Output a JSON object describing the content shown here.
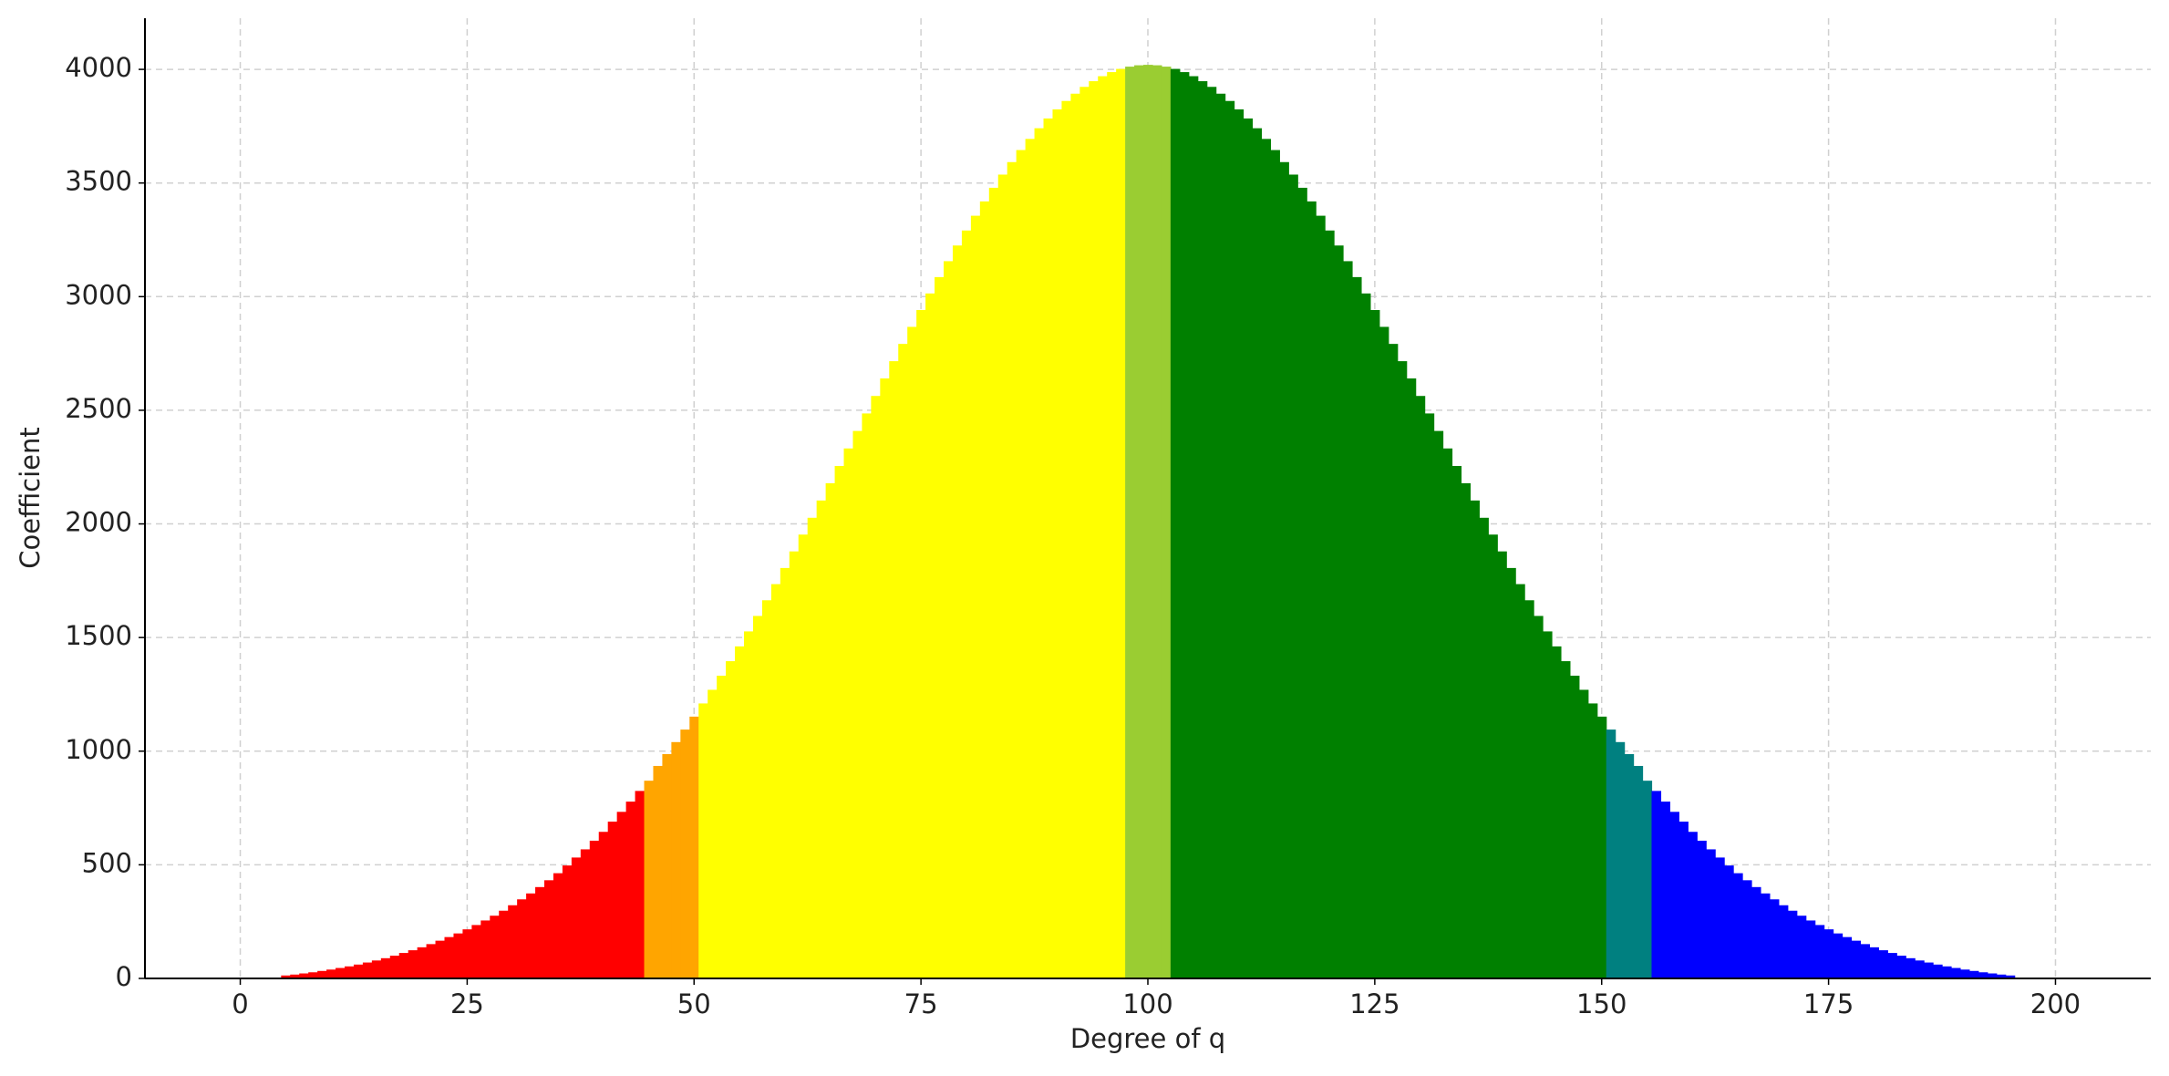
{
  "chart_data": {
    "type": "bar",
    "x_label": "Degree of q",
    "y_label": "Coefficient",
    "xlim": [
      -10.5,
      210.5
    ],
    "ylim": [
      0,
      4225
    ],
    "xticks": [
      0,
      25,
      50,
      75,
      100,
      125,
      150,
      175,
      200
    ],
    "yticks": [
      0,
      500,
      1000,
      1500,
      2000,
      2500,
      3000,
      3500,
      4000
    ],
    "grid": true,
    "series": [
      {
        "color": "#ff0000",
        "x": [
          5,
          6,
          7,
          8,
          9,
          10,
          11,
          12,
          13,
          14,
          15,
          16,
          17,
          18,
          19,
          20,
          21,
          22,
          23,
          24,
          25,
          26,
          27,
          28,
          29,
          30,
          31,
          32,
          33,
          34,
          35,
          36,
          37,
          38,
          39,
          40,
          41,
          42,
          43,
          44
        ],
        "values": [
          13,
          17,
          22,
          27,
          33,
          39,
          46,
          53,
          61,
          70,
          79,
          89,
          100,
          112,
          124,
          137,
          151,
          166,
          182,
          198,
          216,
          235,
          255,
          276,
          298,
          322,
          348,
          374,
          402,
          432,
          463,
          497,
          532,
          568,
          606,
          645,
          690,
          733,
          778,
          825
        ]
      },
      {
        "color": "#ffa500",
        "x": [
          45,
          46,
          47,
          48,
          49,
          50
        ],
        "values": [
          870,
          935,
          987,
          1040,
          1095,
          1152
        ]
      },
      {
        "color": "#ffff00",
        "x": [
          51,
          52,
          53,
          54,
          55,
          56,
          57,
          58,
          59,
          60,
          61,
          62,
          63,
          64,
          65,
          66,
          67,
          68,
          69,
          70,
          71,
          72,
          73,
          74,
          75,
          76,
          77,
          78,
          79,
          80,
          81,
          82,
          83,
          84,
          85,
          86,
          87,
          88,
          89,
          90,
          91,
          92,
          93,
          94,
          95,
          96,
          97
        ],
        "values": [
          1210,
          1270,
          1332,
          1396,
          1461,
          1527,
          1595,
          1664,
          1735,
          1806,
          1879,
          1953,
          2027,
          2103,
          2179,
          2255,
          2332,
          2409,
          2486,
          2563,
          2640,
          2716,
          2792,
          2867,
          2941,
          3014,
          3086,
          3156,
          3225,
          3291,
          3356,
          3419,
          3479,
          3537,
          3592,
          3645,
          3694,
          3741,
          3784,
          3824,
          3861,
          3893,
          3923,
          3948,
          3970,
          3988,
          4002
        ]
      },
      {
        "color": "#9acd32",
        "x": [
          98,
          99,
          100,
          101,
          102
        ],
        "values": [
          4012,
          4018,
          4020,
          4018,
          4012
        ]
      },
      {
        "color": "#008000",
        "x": [
          103,
          104,
          105,
          106,
          107,
          108,
          109,
          110,
          111,
          112,
          113,
          114,
          115,
          116,
          117,
          118,
          119,
          120,
          121,
          122,
          123,
          124,
          125,
          126,
          127,
          128,
          129,
          130,
          131,
          132,
          133,
          134,
          135,
          136,
          137,
          138,
          139,
          140,
          141,
          142,
          143,
          144,
          145,
          146,
          147,
          148,
          149,
          150
        ],
        "values": [
          4002,
          3988,
          3970,
          3948,
          3923,
          3893,
          3861,
          3824,
          3784,
          3741,
          3694,
          3645,
          3592,
          3537,
          3479,
          3419,
          3356,
          3291,
          3225,
          3156,
          3086,
          3014,
          2941,
          2867,
          2792,
          2716,
          2640,
          2563,
          2486,
          2409,
          2332,
          2255,
          2179,
          2103,
          2027,
          1953,
          1879,
          1806,
          1735,
          1664,
          1595,
          1527,
          1461,
          1396,
          1332,
          1270,
          1210,
          1152
        ]
      },
      {
        "color": "#008080",
        "x": [
          151,
          152,
          153,
          154,
          155
        ],
        "values": [
          1095,
          1040,
          987,
          935,
          870
        ]
      },
      {
        "color": "#0000ff",
        "x": [
          156,
          157,
          158,
          159,
          160,
          161,
          162,
          163,
          164,
          165,
          166,
          167,
          168,
          169,
          170,
          171,
          172,
          173,
          174,
          175,
          176,
          177,
          178,
          179,
          180,
          181,
          182,
          183,
          184,
          185,
          186,
          187,
          188,
          189,
          190,
          191,
          192,
          193,
          194,
          195
        ],
        "values": [
          825,
          778,
          733,
          690,
          645,
          606,
          568,
          532,
          497,
          463,
          432,
          402,
          374,
          348,
          322,
          298,
          276,
          255,
          235,
          216,
          198,
          182,
          166,
          151,
          137,
          124,
          112,
          100,
          89,
          79,
          70,
          61,
          53,
          46,
          39,
          33,
          27,
          22,
          17,
          13
        ]
      }
    ]
  }
}
